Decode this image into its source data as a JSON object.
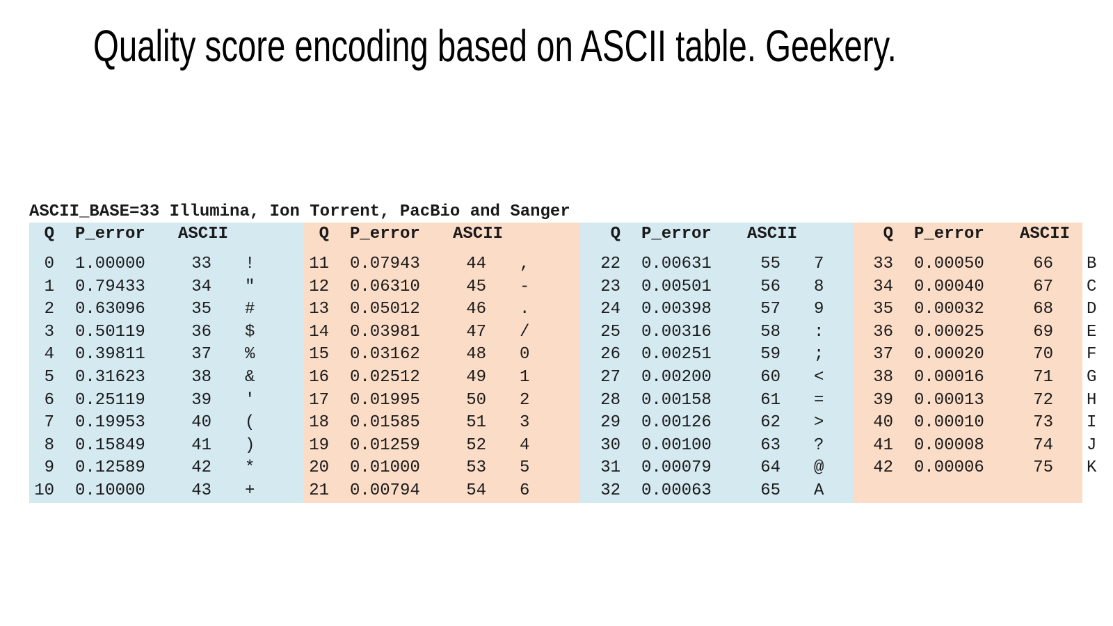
{
  "title": "Quality score encoding based on ASCII table. Geekery.",
  "figure": {
    "caption": "ASCII_BASE=33 Illumina, Ion Torrent, PacBio and Sanger",
    "headers": {
      "q": "Q",
      "p_error": "P_error",
      "ascii": "ASCII"
    },
    "colors": {
      "blue": "#d5e9f1",
      "orange": "#fbdcc7"
    },
    "panels": [
      {
        "rows": [
          {
            "q": "0",
            "p": "1.00000",
            "code": "33",
            "char": "!"
          },
          {
            "q": "1",
            "p": "0.79433",
            "code": "34",
            "char": "\""
          },
          {
            "q": "2",
            "p": "0.63096",
            "code": "35",
            "char": "#"
          },
          {
            "q": "3",
            "p": "0.50119",
            "code": "36",
            "char": "$"
          },
          {
            "q": "4",
            "p": "0.39811",
            "code": "37",
            "char": "%"
          },
          {
            "q": "5",
            "p": "0.31623",
            "code": "38",
            "char": "&"
          },
          {
            "q": "6",
            "p": "0.25119",
            "code": "39",
            "char": "'"
          },
          {
            "q": "7",
            "p": "0.19953",
            "code": "40",
            "char": "("
          },
          {
            "q": "8",
            "p": "0.15849",
            "code": "41",
            "char": ")"
          },
          {
            "q": "9",
            "p": "0.12589",
            "code": "42",
            "char": "*"
          },
          {
            "q": "10",
            "p": "0.10000",
            "code": "43",
            "char": "+"
          }
        ]
      },
      {
        "rows": [
          {
            "q": "11",
            "p": "0.07943",
            "code": "44",
            "char": ","
          },
          {
            "q": "12",
            "p": "0.06310",
            "code": "45",
            "char": "-"
          },
          {
            "q": "13",
            "p": "0.05012",
            "code": "46",
            "char": "."
          },
          {
            "q": "14",
            "p": "0.03981",
            "code": "47",
            "char": "/"
          },
          {
            "q": "15",
            "p": "0.03162",
            "code": "48",
            "char": "0"
          },
          {
            "q": "16",
            "p": "0.02512",
            "code": "49",
            "char": "1"
          },
          {
            "q": "17",
            "p": "0.01995",
            "code": "50",
            "char": "2"
          },
          {
            "q": "18",
            "p": "0.01585",
            "code": "51",
            "char": "3"
          },
          {
            "q": "19",
            "p": "0.01259",
            "code": "52",
            "char": "4"
          },
          {
            "q": "20",
            "p": "0.01000",
            "code": "53",
            "char": "5"
          },
          {
            "q": "21",
            "p": "0.00794",
            "code": "54",
            "char": "6"
          }
        ]
      },
      {
        "rows": [
          {
            "q": "22",
            "p": "0.00631",
            "code": "55",
            "char": "7"
          },
          {
            "q": "23",
            "p": "0.00501",
            "code": "56",
            "char": "8"
          },
          {
            "q": "24",
            "p": "0.00398",
            "code": "57",
            "char": "9"
          },
          {
            "q": "25",
            "p": "0.00316",
            "code": "58",
            "char": ":"
          },
          {
            "q": "26",
            "p": "0.00251",
            "code": "59",
            "char": ";"
          },
          {
            "q": "27",
            "p": "0.00200",
            "code": "60",
            "char": "<"
          },
          {
            "q": "28",
            "p": "0.00158",
            "code": "61",
            "char": "="
          },
          {
            "q": "29",
            "p": "0.00126",
            "code": "62",
            "char": ">"
          },
          {
            "q": "30",
            "p": "0.00100",
            "code": "63",
            "char": "?"
          },
          {
            "q": "31",
            "p": "0.00079",
            "code": "64",
            "char": "@"
          },
          {
            "q": "32",
            "p": "0.00063",
            "code": "65",
            "char": "A"
          }
        ]
      },
      {
        "rows": [
          {
            "q": "33",
            "p": "0.00050",
            "code": "66",
            "char": "B"
          },
          {
            "q": "34",
            "p": "0.00040",
            "code": "67",
            "char": "C"
          },
          {
            "q": "35",
            "p": "0.00032",
            "code": "68",
            "char": "D"
          },
          {
            "q": "36",
            "p": "0.00025",
            "code": "69",
            "char": "E"
          },
          {
            "q": "37",
            "p": "0.00020",
            "code": "70",
            "char": "F"
          },
          {
            "q": "38",
            "p": "0.00016",
            "code": "71",
            "char": "G"
          },
          {
            "q": "39",
            "p": "0.00013",
            "code": "72",
            "char": "H"
          },
          {
            "q": "40",
            "p": "0.00010",
            "code": "73",
            "char": "I"
          },
          {
            "q": "41",
            "p": "0.00008",
            "code": "74",
            "char": "J"
          },
          {
            "q": "42",
            "p": "0.00006",
            "code": "75",
            "char": "K"
          }
        ]
      }
    ]
  }
}
